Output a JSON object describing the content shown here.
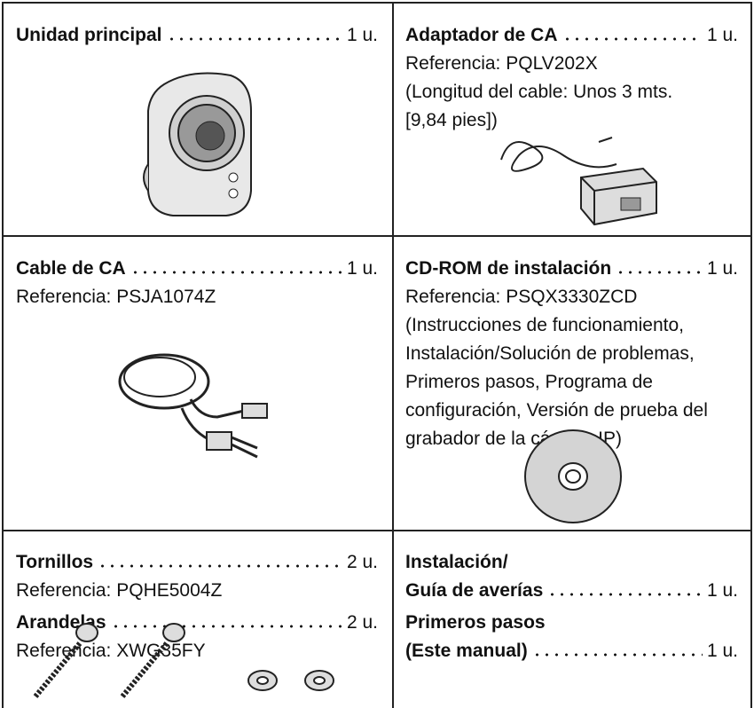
{
  "cells": [
    {
      "items": [
        {
          "name": "Unidad principal",
          "qty": "1 u."
        }
      ]
    },
    {
      "items": [
        {
          "name": "Adaptador de CA",
          "qty": "1 u.",
          "lines": [
            "Referencia: PQLV202X",
            "(Longitud del cable: Unos 3 mts.",
            "[9,84 pies])"
          ]
        }
      ]
    },
    {
      "items": [
        {
          "name": "Cable de CA",
          "qty": "1 u.",
          "lines": [
            "Referencia: PSJA1074Z"
          ]
        }
      ]
    },
    {
      "items": [
        {
          "name": "CD-ROM de instalación",
          "qty": "1 u.",
          "lines": [
            "Referencia: PSQX3330ZCD",
            "(Instrucciones de funcionamiento,",
            "Instalación/Solución de problemas,",
            "Primeros pasos, Programa de",
            "configuración, Versión de prueba del",
            "grabador de la cámara IP)"
          ]
        }
      ]
    },
    {
      "items": [
        {
          "name": "Tornillos",
          "qty": "2 u.",
          "lines": [
            "Referencia: PQHE5004Z"
          ]
        },
        {
          "name": "Arandelas",
          "qty": "2 u.",
          "lines": [
            "Referencia: XWG35FY"
          ]
        }
      ]
    },
    {
      "items": [
        {
          "pre": "Instalación/",
          "name": "Guía de averías",
          "qty": "1 u."
        },
        {
          "pre": "Primeros pasos",
          "name": "(Este manual)",
          "qty": "1 u."
        }
      ]
    }
  ]
}
